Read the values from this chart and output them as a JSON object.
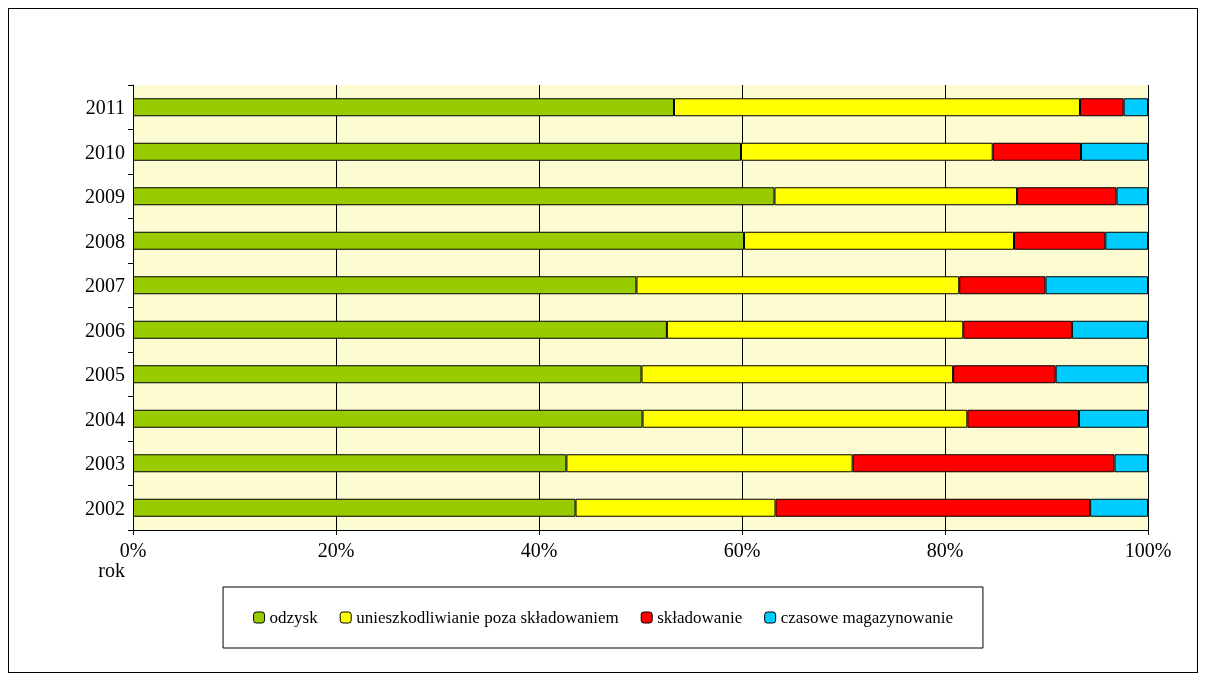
{
  "chart_data": {
    "type": "bar",
    "orientation": "horizontal",
    "stacked": true,
    "ylabel": "rok",
    "categories": [
      "2011",
      "2010",
      "2009",
      "2008",
      "2007",
      "2006",
      "2005",
      "2004",
      "2003",
      "2002"
    ],
    "series": [
      {
        "name": "odzysk",
        "color": "#99cc00",
        "values": [
          53.3,
          59.9,
          63.2,
          60.2,
          49.6,
          52.6,
          50.1,
          50.2,
          42.7,
          43.6
        ]
      },
      {
        "name": "unieszkodliwianie poza składowaniem",
        "color": "#ffff00",
        "values": [
          40.0,
          24.8,
          23.9,
          26.6,
          31.8,
          29.2,
          30.7,
          32.0,
          28.2,
          19.7
        ]
      },
      {
        "name": "składowanie",
        "color": "#ff0000",
        "values": [
          4.3,
          8.7,
          9.8,
          9.0,
          8.5,
          10.7,
          10.1,
          11.0,
          25.8,
          31.0
        ]
      },
      {
        "name": "czasowe magazynowanie",
        "color": "#00ccff",
        "values": [
          2.4,
          6.6,
          3.1,
          4.2,
          10.1,
          7.5,
          9.1,
          6.8,
          3.3,
          5.7
        ]
      }
    ],
    "xlim": [
      0,
      100
    ],
    "xticks": [
      {
        "value": 0,
        "label": "0%"
      },
      {
        "value": 20,
        "label": "20%"
      },
      {
        "value": 40,
        "label": "40%"
      },
      {
        "value": 60,
        "label": "60%"
      },
      {
        "value": 80,
        "label": "80%"
      },
      {
        "value": 100,
        "label": "100%"
      }
    ],
    "grid": "x",
    "legend": "bottom"
  }
}
